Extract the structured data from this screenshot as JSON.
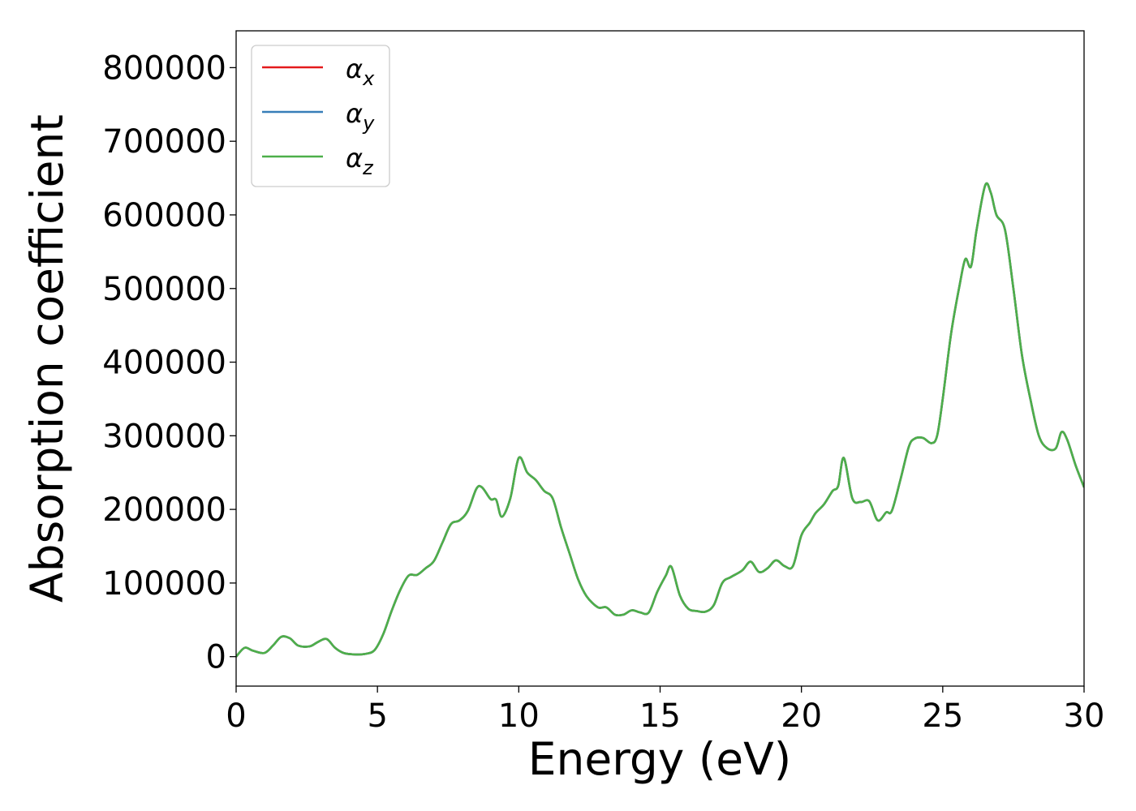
{
  "chart_data": {
    "type": "line",
    "xlabel": "Energy (eV)",
    "ylabel": "Absorption coefficient",
    "xlim": [
      0,
      30
    ],
    "ylim": [
      -40000,
      850000
    ],
    "xticks": [
      0,
      5,
      10,
      15,
      20,
      25,
      30
    ],
    "xtick_labels": [
      "0",
      "5",
      "10",
      "15",
      "20",
      "25",
      "30"
    ],
    "yticks": [
      0,
      100000,
      200000,
      300000,
      400000,
      500000,
      600000,
      700000,
      800000
    ],
    "ytick_labels": [
      "0",
      "100000",
      "200000",
      "300000",
      "400000",
      "500000",
      "600000",
      "700000",
      "800000"
    ],
    "grid": false,
    "legend_position": "upper-left",
    "x": [
      0,
      0.3,
      0.6,
      1.0,
      1.3,
      1.6,
      1.9,
      2.2,
      2.6,
      2.9,
      3.2,
      3.5,
      3.8,
      4.2,
      4.6,
      4.9,
      5.2,
      5.5,
      5.8,
      6.1,
      6.4,
      6.7,
      7.0,
      7.3,
      7.6,
      7.9,
      8.2,
      8.5,
      8.7,
      9.0,
      9.2,
      9.4,
      9.7,
      10.0,
      10.3,
      10.6,
      10.9,
      11.2,
      11.5,
      11.8,
      12.1,
      12.4,
      12.8,
      13.1,
      13.4,
      13.7,
      14.0,
      14.3,
      14.6,
      14.9,
      15.2,
      15.4,
      15.7,
      16.0,
      16.3,
      16.6,
      16.9,
      17.2,
      17.5,
      17.9,
      18.2,
      18.5,
      18.8,
      19.1,
      19.4,
      19.7,
      20.0,
      20.3,
      20.5,
      20.8,
      21.1,
      21.3,
      21.5,
      21.8,
      22.1,
      22.4,
      22.7,
      23.0,
      23.2,
      23.5,
      23.8,
      24.0,
      24.3,
      24.6,
      24.8,
      25.0,
      25.3,
      25.6,
      25.8,
      26.0,
      26.2,
      26.5,
      26.7,
      26.9,
      27.2,
      27.5,
      27.8,
      28.1,
      28.4,
      28.7,
      29.0,
      29.2,
      29.4,
      29.7,
      30.0
    ],
    "series": [
      {
        "name": "α_x",
        "color": "#e41a1c",
        "values": [
          0,
          12000,
          8000,
          5000,
          15000,
          27000,
          25000,
          15000,
          14000,
          20000,
          24000,
          12000,
          5000,
          3000,
          4000,
          9000,
          30000,
          62000,
          90000,
          110000,
          111000,
          120000,
          130000,
          155000,
          180000,
          185000,
          198000,
          228000,
          230000,
          214000,
          213000,
          190000,
          215000,
          270000,
          250000,
          240000,
          225000,
          215000,
          175000,
          140000,
          105000,
          82000,
          67000,
          67000,
          57000,
          57000,
          63000,
          60000,
          60000,
          88000,
          110000,
          122000,
          83000,
          65000,
          62000,
          61000,
          70000,
          100000,
          108000,
          117000,
          129000,
          115000,
          120000,
          131000,
          123000,
          123000,
          165000,
          182000,
          195000,
          207000,
          225000,
          232000,
          270000,
          215000,
          210000,
          211000,
          185000,
          196000,
          198000,
          240000,
          285000,
          296000,
          297000,
          290000,
          300000,
          350000,
          440000,
          505000,
          540000,
          530000,
          580000,
          640000,
          630000,
          600000,
          580000,
          500000,
          410000,
          350000,
          300000,
          283000,
          283000,
          305000,
          295000,
          260000,
          230000
        ]
      },
      {
        "name": "α_y",
        "color": "#377eb8",
        "values": [
          0,
          12000,
          8000,
          5000,
          15000,
          27000,
          25000,
          15000,
          14000,
          20000,
          24000,
          12000,
          5000,
          3000,
          4000,
          9000,
          30000,
          62000,
          90000,
          110000,
          111000,
          120000,
          130000,
          155000,
          180000,
          185000,
          198000,
          228000,
          230000,
          214000,
          213000,
          190000,
          215000,
          270000,
          250000,
          240000,
          225000,
          215000,
          175000,
          140000,
          105000,
          82000,
          67000,
          67000,
          57000,
          57000,
          63000,
          60000,
          60000,
          88000,
          110000,
          122000,
          83000,
          65000,
          62000,
          61000,
          70000,
          100000,
          108000,
          117000,
          129000,
          115000,
          120000,
          131000,
          123000,
          123000,
          165000,
          182000,
          195000,
          207000,
          225000,
          232000,
          270000,
          215000,
          210000,
          211000,
          185000,
          196000,
          198000,
          240000,
          285000,
          296000,
          297000,
          290000,
          300000,
          350000,
          440000,
          505000,
          540000,
          530000,
          580000,
          640000,
          630000,
          600000,
          580000,
          500000,
          410000,
          350000,
          300000,
          283000,
          283000,
          305000,
          295000,
          260000,
          230000
        ]
      },
      {
        "name": "α_z",
        "color": "#4daf4a",
        "values": [
          0,
          12000,
          8000,
          5000,
          15000,
          27000,
          25000,
          15000,
          14000,
          20000,
          24000,
          12000,
          5000,
          3000,
          4000,
          9000,
          30000,
          62000,
          90000,
          110000,
          111000,
          120000,
          130000,
          155000,
          180000,
          185000,
          198000,
          228000,
          230000,
          214000,
          213000,
          190000,
          215000,
          270000,
          250000,
          240000,
          225000,
          215000,
          175000,
          140000,
          105000,
          82000,
          67000,
          67000,
          57000,
          57000,
          63000,
          60000,
          60000,
          88000,
          110000,
          122000,
          83000,
          65000,
          62000,
          61000,
          70000,
          100000,
          108000,
          117000,
          129000,
          115000,
          120000,
          131000,
          123000,
          123000,
          165000,
          182000,
          195000,
          207000,
          225000,
          232000,
          270000,
          215000,
          210000,
          211000,
          185000,
          196000,
          198000,
          240000,
          285000,
          296000,
          297000,
          290000,
          300000,
          350000,
          440000,
          505000,
          540000,
          530000,
          580000,
          640000,
          630000,
          600000,
          580000,
          500000,
          410000,
          350000,
          300000,
          283000,
          283000,
          305000,
          295000,
          260000,
          230000
        ]
      }
    ],
    "legend": [
      {
        "symbol": "α",
        "subscript": "x"
      },
      {
        "symbol": "α",
        "subscript": "y"
      },
      {
        "symbol": "α",
        "subscript": "z"
      }
    ]
  }
}
